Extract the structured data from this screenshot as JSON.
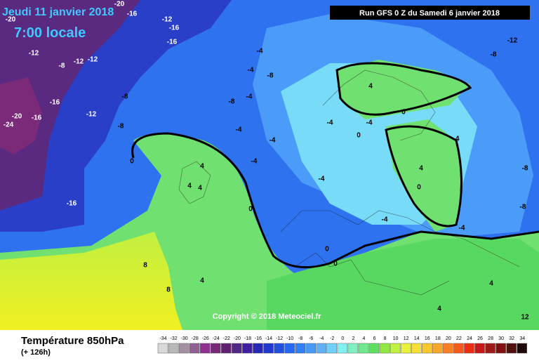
{
  "header": {
    "title": "Jeudi 11 janvier 2018",
    "time": "7:00 locale",
    "run": "Run GFS 0 Z du Samedi 6 janvier 2018"
  },
  "copyright": "Copyright © 2018 Meteociel.fr",
  "footer": {
    "parameter": "Température 850hPa",
    "lead": "(+ 126h)"
  },
  "legend": {
    "values": [
      -34,
      -32,
      -30,
      -28,
      -26,
      -24,
      -22,
      -20,
      -18,
      -16,
      -14,
      -12,
      -10,
      -8,
      -6,
      -4,
      -2,
      0,
      2,
      4,
      6,
      8,
      10,
      12,
      14,
      16,
      18,
      20,
      22,
      24,
      26,
      28,
      30,
      32,
      34
    ],
    "colors": [
      "#d8d8d8",
      "#b8b8b8",
      "#a090a0",
      "#906090",
      "#903090",
      "#782878",
      "#602070",
      "#502888",
      "#4020a0",
      "#2828b8",
      "#2038d0",
      "#2050e0",
      "#2868f0",
      "#3080f8",
      "#4898f8",
      "#60b0f8",
      "#70d0f8",
      "#80f0f0",
      "#80f0c0",
      "#70e890",
      "#60e060",
      "#90e840",
      "#c0f040",
      "#e8f040",
      "#f8e038",
      "#f8c830",
      "#f8a828",
      "#f88020",
      "#f85818",
      "#e83010",
      "#c81818",
      "#a01818",
      "#801010",
      "#501010",
      "#200808"
    ]
  },
  "map_labels": [
    "-20",
    "-16",
    "-20",
    "-12",
    "-16",
    "-16",
    "-12",
    "-8",
    "-12",
    "-12",
    "-8",
    "-16",
    "-12",
    "-20",
    "-16",
    "-24",
    "-8",
    "-16",
    "0",
    "-4",
    "-4",
    "-8",
    "-8",
    "-4",
    "-4",
    "-4",
    "-4",
    "-4",
    "-4",
    "4",
    "0",
    "-4",
    "0",
    "-4",
    "4",
    "0",
    "-8",
    "-8",
    "-12",
    "-8",
    "4",
    "4",
    "4",
    "0",
    "8",
    "8",
    "4",
    "0",
    "0",
    "-4",
    "-4",
    "4",
    "4",
    "12"
  ]
}
